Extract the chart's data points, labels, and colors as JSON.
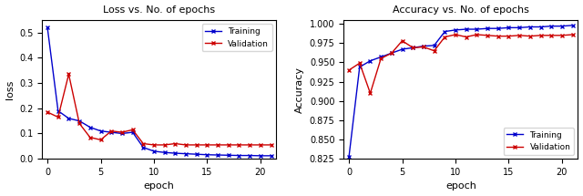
{
  "loss_train": [
    0.52,
    0.19,
    0.16,
    0.15,
    0.125,
    0.11,
    0.105,
    0.1,
    0.105,
    0.045,
    0.03,
    0.025,
    0.022,
    0.02,
    0.018,
    0.016,
    0.015,
    0.014,
    0.013,
    0.013,
    0.012,
    0.012
  ],
  "loss_val": [
    0.185,
    0.165,
    0.335,
    0.14,
    0.085,
    0.075,
    0.11,
    0.105,
    0.115,
    0.06,
    0.055,
    0.055,
    0.06,
    0.055,
    0.055,
    0.055,
    0.055,
    0.055,
    0.055,
    0.055,
    0.055,
    0.055
  ],
  "acc_train": [
    0.828,
    0.944,
    0.952,
    0.957,
    0.962,
    0.967,
    0.969,
    0.971,
    0.972,
    0.99,
    0.992,
    0.993,
    0.993,
    0.994,
    0.994,
    0.995,
    0.995,
    0.996,
    0.996,
    0.997,
    0.997,
    0.998
  ],
  "acc_val": [
    0.94,
    0.949,
    0.91,
    0.955,
    0.962,
    0.978,
    0.969,
    0.97,
    0.965,
    0.983,
    0.986,
    0.983,
    0.986,
    0.985,
    0.984,
    0.984,
    0.985,
    0.984,
    0.985,
    0.985,
    0.985,
    0.986
  ],
  "epochs": [
    0,
    1,
    2,
    3,
    4,
    5,
    6,
    7,
    8,
    9,
    10,
    11,
    12,
    13,
    14,
    15,
    16,
    17,
    18,
    19,
    20,
    21
  ],
  "loss_title": "Loss vs. No. of epochs",
  "acc_title": "Accuracy vs. No. of epochs",
  "xlabel": "epoch",
  "loss_ylabel": "loss",
  "acc_ylabel": "Accuracy",
  "train_color": "#0000cc",
  "val_color": "#cc0000",
  "train_label": "Training",
  "val_label": "Validation",
  "loss_ylim": [
    0.0,
    0.55
  ],
  "acc_ylim": [
    0.825,
    1.005
  ],
  "loss_yticks": [
    0.0,
    0.1,
    0.2,
    0.3,
    0.4,
    0.5
  ],
  "acc_yticks": [
    0.825,
    0.85,
    0.875,
    0.9,
    0.925,
    0.95,
    0.975,
    1.0
  ],
  "xticks": [
    0,
    5,
    10,
    15,
    20
  ],
  "bg_color": "#ffffff"
}
